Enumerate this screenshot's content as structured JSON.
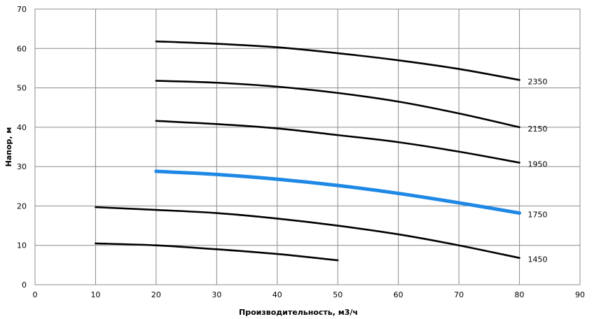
{
  "chart_data": {
    "type": "line",
    "title": "",
    "xlabel": "Производительность,  м3/ч",
    "ylabel": "Напор, м",
    "xlim": [
      0,
      90
    ],
    "ylim": [
      0,
      70
    ],
    "x_ticks": [
      0,
      10,
      20,
      30,
      40,
      50,
      60,
      70,
      80,
      90
    ],
    "y_ticks": [
      0,
      10,
      20,
      30,
      40,
      50,
      60,
      70
    ],
    "grid": true,
    "legend": "none",
    "series": [
      {
        "name": "2350",
        "color": "#000000",
        "x": [
          20,
          30,
          40,
          50,
          60,
          70,
          80
        ],
        "y": [
          61.8,
          61.2,
          60.3,
          58.8,
          57.0,
          54.8,
          52.0
        ]
      },
      {
        "name": "2150",
        "color": "#000000",
        "x": [
          20,
          30,
          40,
          50,
          60,
          70,
          80
        ],
        "y": [
          51.8,
          51.3,
          50.3,
          48.7,
          46.5,
          43.5,
          40.0
        ]
      },
      {
        "name": "1950",
        "color": "#000000",
        "x": [
          20,
          30,
          40,
          50,
          60,
          70,
          80
        ],
        "y": [
          41.6,
          40.8,
          39.7,
          38.0,
          36.2,
          33.8,
          31.0
        ]
      },
      {
        "name": "1750",
        "color": "#1e88e5",
        "x": [
          20,
          30,
          40,
          50,
          60,
          70,
          80
        ],
        "y": [
          28.8,
          28.0,
          26.8,
          25.2,
          23.2,
          20.8,
          18.2
        ]
      },
      {
        "name": "1450",
        "color": "#000000",
        "x": [
          10,
          20,
          30,
          40,
          50,
          60,
          70,
          80
        ],
        "y": [
          19.7,
          19.0,
          18.2,
          16.8,
          15.0,
          12.8,
          10.0,
          6.8
        ]
      },
      {
        "name": "",
        "color": "#000000",
        "x": [
          10,
          20,
          30,
          40,
          50
        ],
        "y": [
          10.5,
          10.0,
          9.0,
          7.8,
          6.2
        ]
      }
    ]
  }
}
